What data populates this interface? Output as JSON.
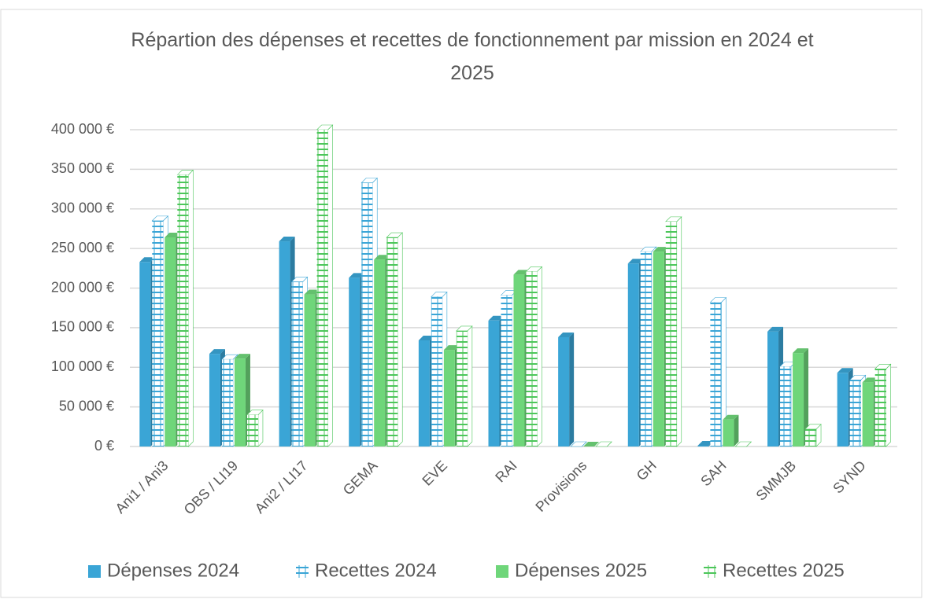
{
  "chart_data": {
    "type": "bar3d",
    "title": "Répartion des dépenses et recettes de fonctionnement par mission en 2024 et 2025",
    "categories": [
      "Ani1 / Ani3",
      "OBS / LI19",
      "Ani2 / LI17",
      "GEMA",
      "EVE",
      "RAI",
      "Provisions",
      "GH",
      "SAH",
      "SMMJB",
      "SYND"
    ],
    "series": [
      {
        "name": "Dépenses 2024",
        "color": "#3aa5d6",
        "fill": "solid",
        "values": [
          233000,
          117000,
          259000,
          213000,
          134000,
          159000,
          138000,
          231000,
          1000,
          145000,
          93000
        ]
      },
      {
        "name": "Recettes 2024",
        "color": "#3aa5d6",
        "fill": "hatched",
        "values": [
          285000,
          110000,
          208000,
          333000,
          189000,
          191000,
          0,
          246000,
          182000,
          101000,
          84000
        ]
      },
      {
        "name": "Dépenses 2025",
        "color": "#6fd67a",
        "fill": "solid",
        "values": [
          264000,
          111000,
          192000,
          236000,
          122000,
          217000,
          0,
          246000,
          34000,
          118000,
          81000
        ]
      },
      {
        "name": "Recettes 2025",
        "color": "#4cc65a",
        "fill": "hatched",
        "values": [
          343000,
          40000,
          400000,
          264000,
          146000,
          221000,
          0,
          284000,
          0,
          22000,
          98000
        ]
      }
    ],
    "ylim": [
      0,
      400000
    ],
    "yticks": [
      {
        "value": 0,
        "label": "0 €"
      },
      {
        "value": 50000,
        "label": "50 000 €"
      },
      {
        "value": 100000,
        "label": "100 000 €"
      },
      {
        "value": 150000,
        "label": "150 000 €"
      },
      {
        "value": 200000,
        "label": "200 000 €"
      },
      {
        "value": 250000,
        "label": "250 000 €"
      },
      {
        "value": 300000,
        "label": "300 000 €"
      },
      {
        "value": 350000,
        "label": "350 000 €"
      },
      {
        "value": 400000,
        "label": "400 000 €"
      }
    ],
    "grid": true,
    "legend": "bottom"
  }
}
